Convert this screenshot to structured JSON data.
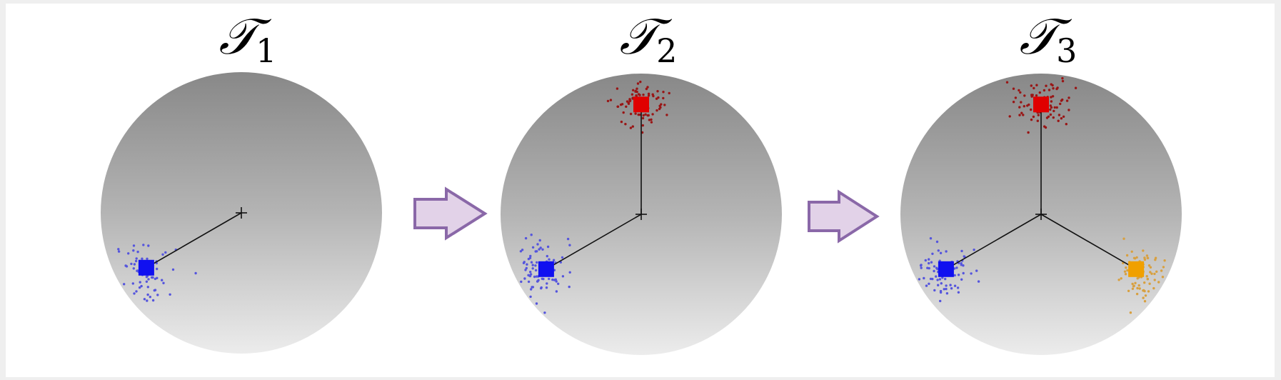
{
  "panels": [
    {
      "title": "𝒯",
      "subscript": "1",
      "leaves": [
        {
          "name": "blue",
          "angle_deg": 210,
          "color": "#1010f0",
          "dots_color": "#5555dd",
          "count": 70,
          "spread": 0.18
        }
      ]
    },
    {
      "title": "𝒯",
      "subscript": "2",
      "leaves": [
        {
          "name": "blue",
          "angle_deg": 210,
          "color": "#1010f0",
          "dots_color": "#5555dd",
          "count": 80,
          "spread": 0.18
        },
        {
          "name": "red",
          "angle_deg": 90,
          "color": "#e00000",
          "dots_color": "#991515",
          "count": 80,
          "spread": 0.18
        }
      ]
    },
    {
      "title": "𝒯",
      "subscript": "3",
      "leaves": [
        {
          "name": "blue",
          "angle_deg": 210,
          "color": "#1010f0",
          "dots_color": "#5555dd",
          "count": 80,
          "spread": 0.18
        },
        {
          "name": "red",
          "angle_deg": 90,
          "color": "#e00000",
          "dots_color": "#991515",
          "count": 80,
          "spread": 0.18
        },
        {
          "name": "orange",
          "angle_deg": 330,
          "color": "#f0a000",
          "dots_color": "#d8a040",
          "count": 80,
          "spread": 0.18
        }
      ]
    }
  ],
  "arrow_colors": {
    "fill": "#e2d2e8",
    "stroke": "#8a68a8"
  }
}
